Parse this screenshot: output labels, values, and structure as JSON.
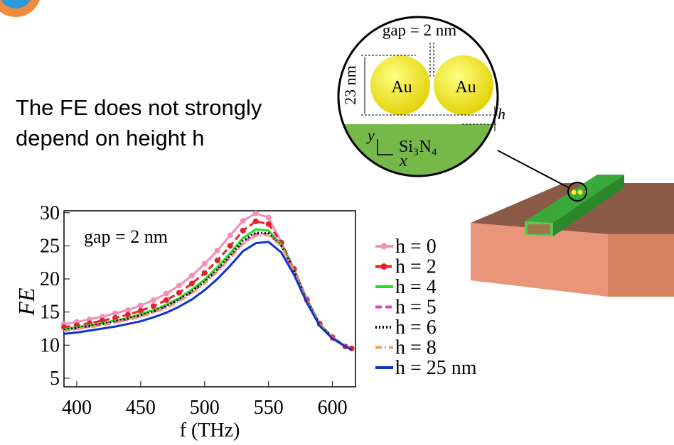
{
  "slide": {
    "text_lines": [
      "The FE does not strongly",
      "depend on height h"
    ]
  },
  "diagram": {
    "gap_label": "gap = 2 nm",
    "diameter_label": "23 nm",
    "particle_left": "Au",
    "particle_right": "Au",
    "height_label": "h",
    "substrate": "Si₃N₄",
    "axis_y": "y",
    "axis_x": "x"
  },
  "chart_data": {
    "type": "line",
    "annotation": "gap = 2 nm",
    "xlabel": "f (THz)",
    "ylabel": "FE",
    "x": [
      390,
      400,
      410,
      420,
      430,
      440,
      450,
      460,
      470,
      480,
      490,
      500,
      510,
      520,
      530,
      540,
      550,
      560,
      570,
      580,
      590,
      600,
      610,
      615
    ],
    "xlim": [
      390,
      618
    ],
    "xticks": [
      400,
      450,
      500,
      550,
      600
    ],
    "ylim": [
      3.7,
      30.3
    ],
    "yticks": [
      5,
      10,
      15,
      20,
      25,
      30
    ],
    "series": [
      {
        "name": "h = 0",
        "color": "#f48fb8",
        "style": "solid",
        "marker": "circle",
        "values": [
          13.2,
          13.5,
          13.9,
          14.3,
          14.8,
          15.3,
          16.0,
          16.8,
          17.8,
          19.0,
          20.5,
          22.3,
          24.3,
          26.6,
          28.8,
          29.9,
          29.3,
          25.5,
          21.5,
          17.0,
          13.3,
          11.0,
          9.8,
          9.5
        ]
      },
      {
        "name": "h = 2",
        "color": "#e8202a",
        "style": "dashed",
        "marker": "circle",
        "values": [
          12.7,
          13.0,
          13.3,
          13.7,
          14.1,
          14.6,
          15.2,
          15.9,
          16.8,
          17.9,
          19.3,
          20.9,
          22.8,
          25.0,
          27.3,
          28.7,
          28.3,
          25.5,
          21.5,
          16.8,
          13.2,
          11.2,
          9.8,
          9.5
        ]
      },
      {
        "name": "h = 4",
        "color": "#22dd22",
        "style": "solid",
        "marker": "none",
        "values": [
          12.4,
          12.7,
          13.0,
          13.3,
          13.7,
          14.1,
          14.7,
          15.3,
          16.1,
          17.1,
          18.4,
          19.9,
          21.8,
          23.9,
          26.2,
          27.5,
          27.3,
          25.2,
          21.3,
          16.8,
          13.2,
          11.2,
          9.9,
          9.5
        ]
      },
      {
        "name": "h = 5",
        "color": "#e040d0",
        "style": "dashed",
        "marker": "none",
        "values": [
          12.2,
          12.5,
          12.8,
          13.1,
          13.5,
          13.9,
          14.4,
          15.0,
          15.8,
          16.8,
          18.0,
          19.5,
          21.3,
          23.3,
          25.5,
          26.8,
          26.8,
          25.0,
          21.2,
          16.7,
          13.1,
          11.1,
          9.9,
          9.5
        ]
      },
      {
        "name": "h = 6",
        "color": "#000000",
        "style": "dotted",
        "marker": "none",
        "values": [
          12.3,
          12.6,
          12.9,
          13.2,
          13.6,
          14.0,
          14.5,
          15.1,
          15.9,
          16.9,
          18.1,
          19.6,
          21.4,
          23.5,
          25.8,
          27.0,
          26.9,
          25.0,
          21.2,
          16.7,
          13.1,
          11.1,
          9.9,
          9.5
        ]
      },
      {
        "name": "h = 8",
        "color": "#f0a060",
        "style": "dashdot",
        "marker": "none",
        "values": [
          12.1,
          12.4,
          12.7,
          13.0,
          13.4,
          13.8,
          14.3,
          14.9,
          15.6,
          16.6,
          17.8,
          19.3,
          21.1,
          23.1,
          25.3,
          26.5,
          26.6,
          24.9,
          21.1,
          16.6,
          13.1,
          11.1,
          9.9,
          9.5
        ]
      },
      {
        "name": "h = 25 nm",
        "color": "#1030d0",
        "style": "solid",
        "marker": "none",
        "values": [
          11.7,
          11.9,
          12.2,
          12.5,
          12.8,
          13.2,
          13.6,
          14.2,
          14.9,
          15.8,
          16.9,
          18.3,
          20.0,
          22.0,
          24.2,
          25.4,
          25.6,
          24.0,
          20.6,
          16.4,
          12.9,
          11.0,
          9.8,
          9.3
        ]
      }
    ]
  }
}
